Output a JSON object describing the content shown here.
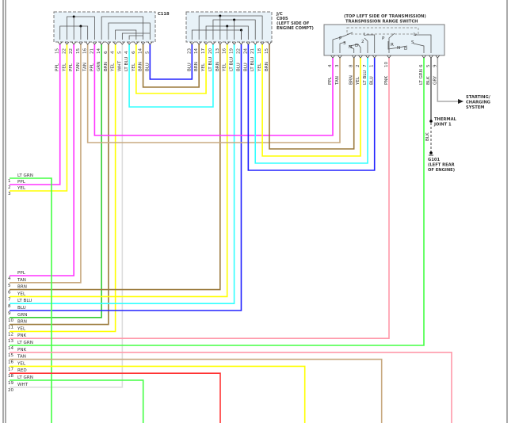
{
  "wire_colors": {
    "PPL": "#ff33ff",
    "YEL": "#ffff00",
    "TAN": "#c8aa80",
    "BRN": "#9b7a3c",
    "GRN": "#33cc33",
    "LT GRN": "#44ff44",
    "LT BLU": "#33ffff",
    "BLU": "#2222ff",
    "WHT": "#dddddd",
    "PNK": "#ff99aa",
    "RED": "#ff3333",
    "BLK": "#666666",
    "GRY": "#aaaaaa"
  },
  "connectors": {
    "c118": {
      "label": "C118",
      "pins": [
        {
          "wire": "PPL",
          "num": "15"
        },
        {
          "wire": "YEL",
          "num": "22"
        },
        {
          "wire": "PPL",
          "num": "22"
        },
        {
          "wire": "TAN",
          "num": "15"
        },
        {
          "wire": "TAN",
          "num": "16"
        },
        {
          "wire": "PPL",
          "num": "21"
        },
        {
          "wire": "GRN",
          "num": "14"
        },
        {
          "wire": "BRN",
          "num": "6"
        },
        {
          "wire": "YEL",
          "num": "4"
        },
        {
          "wire": "WHT",
          "num": "5"
        },
        {
          "wire": "LT BLU",
          "num": "4"
        },
        {
          "wire": "YEL",
          "num": "6"
        },
        {
          "wire": "BRN",
          "num": "14"
        },
        {
          "wire": "BLU",
          "num": "5"
        }
      ]
    },
    "c005": {
      "label_lines": [
        "J/C",
        "C005",
        "(LEFT SIDE OF",
        "ENGINE COMPT)"
      ],
      "pins": [
        {
          "wire": "BLU",
          "num": "23"
        },
        {
          "wire": "BRN",
          "num": "14"
        },
        {
          "wire": "YEL",
          "num": "17"
        },
        {
          "wire": "LT BLU",
          "num": "20"
        },
        {
          "wire": "BRN",
          "num": "13"
        },
        {
          "wire": "YEL",
          "num": "16"
        },
        {
          "wire": "LT BLU",
          "num": "19"
        },
        {
          "wire": "BLU",
          "num": "22"
        },
        {
          "wire": "BLU",
          "num": "24"
        },
        {
          "wire": "LT BLU",
          "num": "21"
        },
        {
          "wire": "YEL",
          "num": "18"
        },
        {
          "wire": "BRN",
          "num": "15"
        }
      ]
    },
    "range_switch": {
      "title_lines": [
        "(TOP LEFT SIDE OF TRANSMISSION)",
        "TRANSMISSION RANGE SWITCH"
      ],
      "positions_left": [
        "P",
        "3",
        "N",
        "D",
        "2",
        "L"
      ],
      "positions_right": [
        "P",
        "R",
        "N",
        "D",
        "S",
        "L"
      ],
      "pins": [
        {
          "wire": "PPL",
          "num": "4"
        },
        {
          "wire": "TAN",
          "num": "3"
        },
        {
          "wire": "BRN",
          "num": "8"
        },
        {
          "wire": "YEL",
          "num": "2"
        },
        {
          "wire": "LT BLU",
          "num": "7"
        },
        {
          "wire": "BLU",
          "num": "1"
        },
        {
          "wire": "PNK",
          "num": "10"
        },
        {
          "wire": "LT GRN",
          "num": "6"
        },
        {
          "wire": "BLK",
          "num": "5"
        },
        {
          "wire": "GRY",
          "num": "9"
        }
      ]
    }
  },
  "harness": [
    {
      "num": "1",
      "wire": "LT GRN"
    },
    {
      "num": "2",
      "wire": "PPL"
    },
    {
      "num": "3",
      "wire": "YEL"
    },
    {
      "num": "4",
      "wire": "PPL"
    },
    {
      "num": "5",
      "wire": "TAN"
    },
    {
      "num": "6",
      "wire": "BRN"
    },
    {
      "num": "7",
      "wire": "YEL"
    },
    {
      "num": "8",
      "wire": "LT BLU"
    },
    {
      "num": "9",
      "wire": "BLU"
    },
    {
      "num": "10",
      "wire": "GRN"
    },
    {
      "num": "11",
      "wire": "BRN"
    },
    {
      "num": "12",
      "wire": "YEL"
    },
    {
      "num": "13",
      "wire": "PNK"
    },
    {
      "num": "14",
      "wire": "LT GRN"
    },
    {
      "num": "15",
      "wire": "PNK"
    },
    {
      "num": "16",
      "wire": "TAN"
    },
    {
      "num": "17",
      "wire": "YEL"
    },
    {
      "num": "18",
      "wire": "RED"
    },
    {
      "num": "19",
      "wire": "LT GRN"
    },
    {
      "num": "20",
      "wire": "WHT"
    }
  ],
  "annotations": {
    "starting_lines": [
      "STARTING/",
      "CHARGING",
      "SYSTEM"
    ],
    "thermal_lines": [
      "THERMAL",
      "JOINT 1"
    ],
    "ground_wire": "BLK",
    "ground_lines": [
      "G101",
      "(LEFT REAR",
      "OF ENGINE)"
    ]
  }
}
